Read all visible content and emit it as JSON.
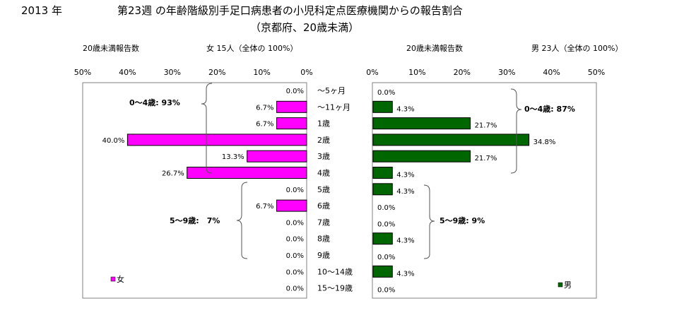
{
  "header": {
    "year": "2013 年",
    "title": "第23週 の年齢階級別手足口病患者の小児科定点医療機関からの報告割合",
    "subtitle": "（京都府、20歳未満）"
  },
  "left_panel": {
    "count_label": "20歳未満報告数",
    "summary": "女 15人（全体の 100%）",
    "legend": "女",
    "group_top": "0～4歳: 93%",
    "group_bottom": "5～9歳:　7%"
  },
  "right_panel": {
    "count_label": "20歳未満報告数",
    "summary": "男 23人（全体の 100%）",
    "legend": "男",
    "group_top": "0～4歳: 87%",
    "group_bottom": "5～9歳: 9%"
  },
  "chart_data": {
    "type": "bar",
    "orientation": "horizontal-butterfly",
    "categories": [
      "～5ヶ月",
      "～11ヶ月",
      "1歳",
      "2歳",
      "3歳",
      "4歳",
      "5歳",
      "6歳",
      "7歳",
      "8歳",
      "9歳",
      "10～14歳",
      "15～19歳"
    ],
    "xlim": [
      0,
      50
    ],
    "left_ticks": [
      "50%",
      "40%",
      "30%",
      "20%",
      "10%",
      "0%"
    ],
    "right_ticks": [
      "0%",
      "10%",
      "20%",
      "30%",
      "40%",
      "50%"
    ],
    "series": [
      {
        "name": "女",
        "color": "#ff00ff",
        "values": [
          0.0,
          6.7,
          6.7,
          40.0,
          13.3,
          26.7,
          0.0,
          6.7,
          0.0,
          0.0,
          0.0,
          0.0,
          0.0
        ],
        "labels": [
          "0.0%",
          "6.7%",
          "6.7%",
          "40.0%",
          "13.3%",
          "26.7%",
          "0.0%",
          "6.7%",
          "0.0%",
          "0.0%",
          "0.0%",
          "0.0%",
          "0.0%"
        ]
      },
      {
        "name": "男",
        "color": "#006600",
        "values": [
          0.0,
          4.3,
          21.7,
          34.8,
          21.7,
          4.3,
          4.3,
          0.0,
          0.0,
          4.3,
          0.0,
          4.3,
          0.0
        ],
        "labels": [
          "0.0%",
          "4.3%",
          "21.7%",
          "34.8%",
          "21.7%",
          "4.3%",
          "4.3%",
          "0.0%",
          "0.0%",
          "4.3%",
          "0.0%",
          "4.3%",
          "0.0%"
        ]
      }
    ]
  }
}
